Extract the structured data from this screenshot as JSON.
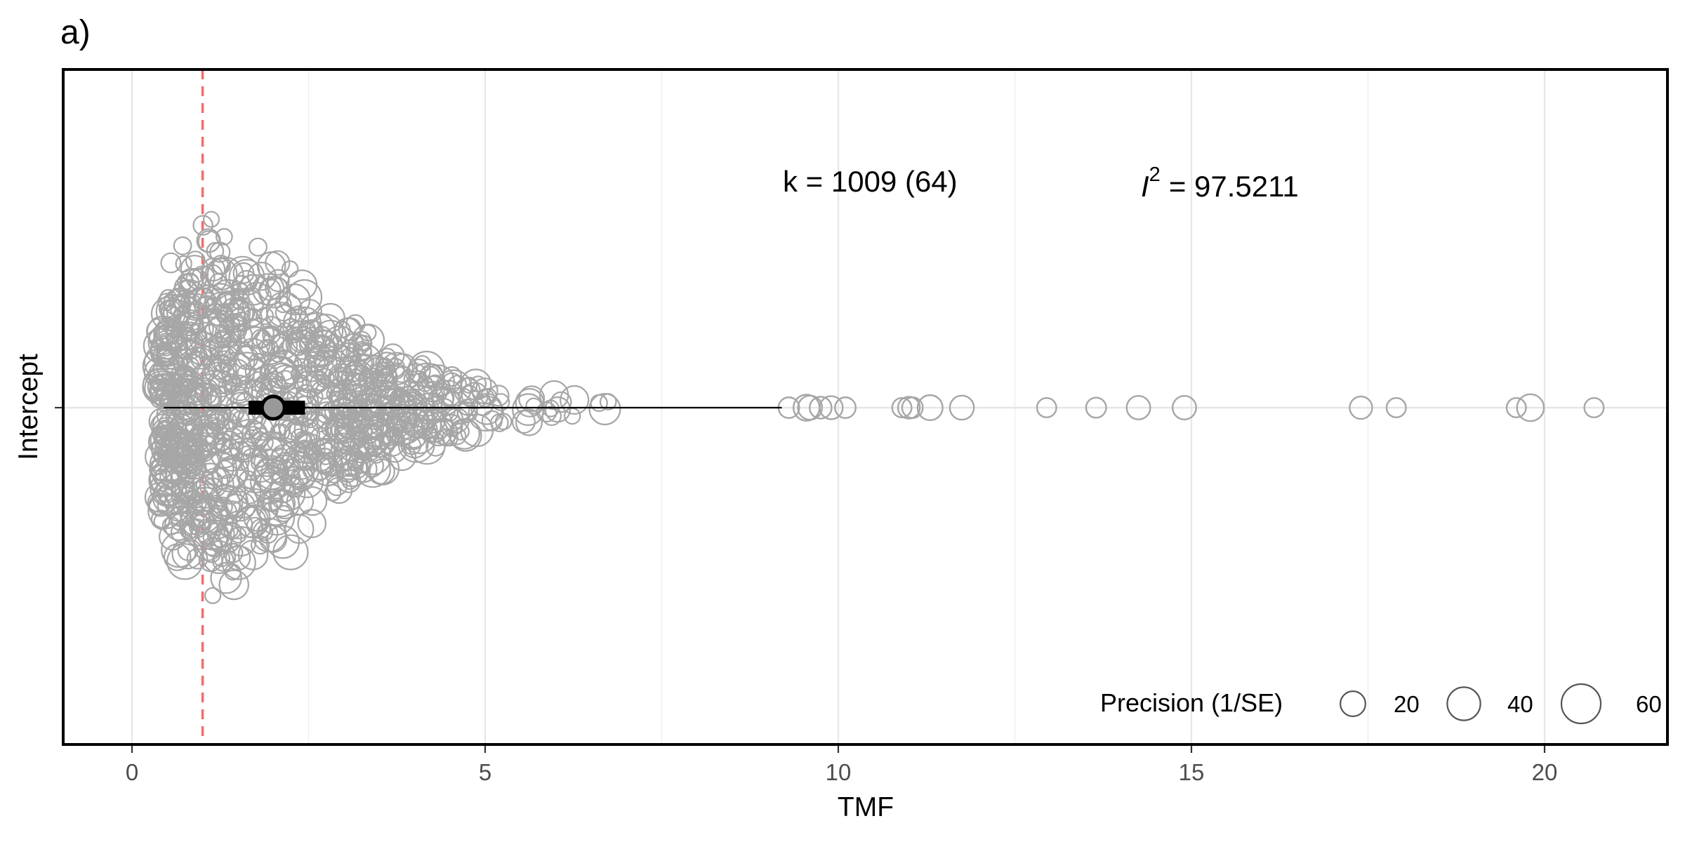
{
  "chart_data": {
    "type": "scatter",
    "subtype": "orchard-plot",
    "panel_label": "a)",
    "xlabel": "TMF",
    "ylabel": "Intercept",
    "categories": [
      "Intercept"
    ],
    "xlim": [
      -1,
      22
    ],
    "x_ticks": [
      "0",
      "5",
      "10",
      "15",
      "20"
    ],
    "x_tick_values": [
      0,
      5,
      10,
      15,
      20
    ],
    "grid": true,
    "reference_line": {
      "x": 1,
      "style": "dashed",
      "color": "#f26d6d"
    },
    "estimate": {
      "mean": 2.0,
      "ci": [
        1.65,
        2.45
      ],
      "pi": [
        0.45,
        9.2
      ]
    },
    "annotations": {
      "k_text": "k = 1009 (64)",
      "i2_symbol": "I",
      "i2_sup": "2",
      "i2_value": "= 97.5211"
    },
    "legend": {
      "title": "Precision (1/SE)",
      "placement": "bottom-right",
      "sizes": [
        {
          "label": "20",
          "value": 20
        },
        {
          "label": "40",
          "value": 40
        },
        {
          "label": "60",
          "value": 60
        }
      ]
    },
    "outlier_points": [
      {
        "x": 9.3,
        "precision": 12
      },
      {
        "x": 9.55,
        "precision": 22
      },
      {
        "x": 9.6,
        "precision": 18
      },
      {
        "x": 9.75,
        "precision": 14
      },
      {
        "x": 9.9,
        "precision": 16
      },
      {
        "x": 10.1,
        "precision": 12
      },
      {
        "x": 10.9,
        "precision": 10
      },
      {
        "x": 11.0,
        "precision": 14
      },
      {
        "x": 11.05,
        "precision": 12
      },
      {
        "x": 11.3,
        "precision": 20
      },
      {
        "x": 11.75,
        "precision": 18
      },
      {
        "x": 12.95,
        "precision": 10
      },
      {
        "x": 13.65,
        "precision": 11
      },
      {
        "x": 14.25,
        "precision": 17
      },
      {
        "x": 14.9,
        "precision": 17
      },
      {
        "x": 17.4,
        "precision": 15
      },
      {
        "x": 17.9,
        "precision": 10
      },
      {
        "x": 19.6,
        "precision": 10
      },
      {
        "x": 19.8,
        "precision": 24
      },
      {
        "x": 20.7,
        "precision": 10
      }
    ],
    "bulk_distribution": {
      "n_points": 989,
      "x_range": [
        0,
        9.0
      ],
      "shape": "right-skewed, mode near 1.2"
    }
  }
}
